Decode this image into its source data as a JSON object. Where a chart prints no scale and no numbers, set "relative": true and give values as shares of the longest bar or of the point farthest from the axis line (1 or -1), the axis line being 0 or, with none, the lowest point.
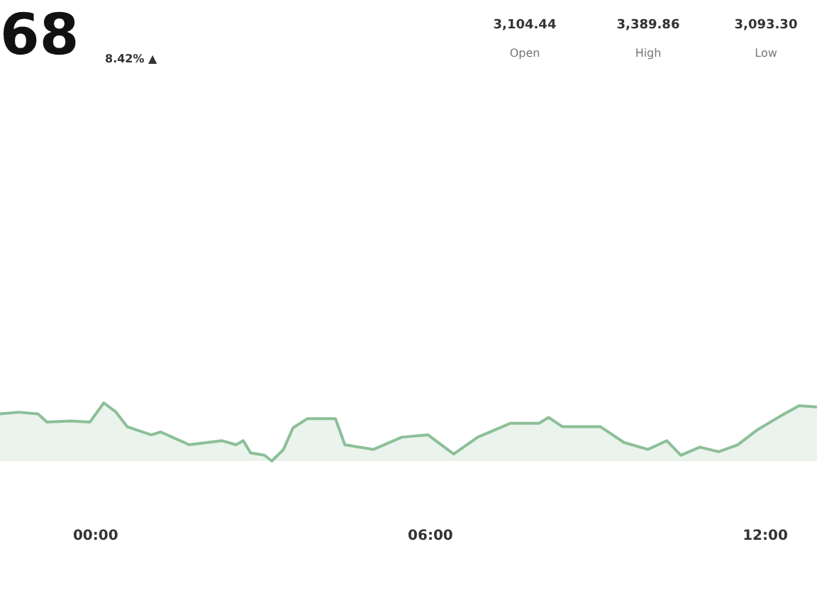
{
  "chart_data": {
    "type": "area",
    "title": "68",
    "subtitle": "8.42% ▲",
    "relative": true,
    "annotations": [
      "3,104.44",
      "Open",
      "3,389.86",
      "High",
      "3,093.30",
      "Low"
    ],
    "x": [
      -1.7,
      -1.37,
      -1.02,
      -0.86,
      -0.43,
      -0.09,
      0.16,
      0.37,
      0.58,
      1.01,
      1.18,
      1.69,
      2.28,
      2.53,
      2.66,
      2.79,
      3.04,
      3.17,
      3.38,
      3.55,
      3.81,
      4.31,
      4.48,
      4.99,
      5.5,
      5.97,
      6.43,
      6.86,
      7.45,
      7.96,
      8.13,
      8.38,
      9.06,
      9.48,
      9.91,
      10.25,
      10.5,
      10.84,
      11.18,
      11.52,
      11.86,
      12.28,
      12.62,
      12.94
    ],
    "series": [
      {
        "color": "#8cbf98",
        "values": [
          0.81,
          0.84,
          0.81,
          0.67,
          0.69,
          0.67,
          1.0,
          0.85,
          0.59,
          0.45,
          0.5,
          0.28,
          0.35,
          0.28,
          0.35,
          0.14,
          0.1,
          0.0,
          0.2,
          0.57,
          0.73,
          0.73,
          0.28,
          0.2,
          0.41,
          0.45,
          0.12,
          0.41,
          0.65,
          0.65,
          0.75,
          0.59,
          0.59,
          0.32,
          0.2,
          0.35,
          0.1,
          0.24,
          0.16,
          0.28,
          0.53,
          0.77,
          0.95,
          0.93
        ]
      }
    ],
    "xlim": [
      -1.7,
      12.94
    ],
    "xticks": [
      {
        "value": 0,
        "label": "00:00"
      },
      {
        "value": 6,
        "label": "06:00"
      },
      {
        "value": 12,
        "label": "12:00"
      }
    ]
  }
}
